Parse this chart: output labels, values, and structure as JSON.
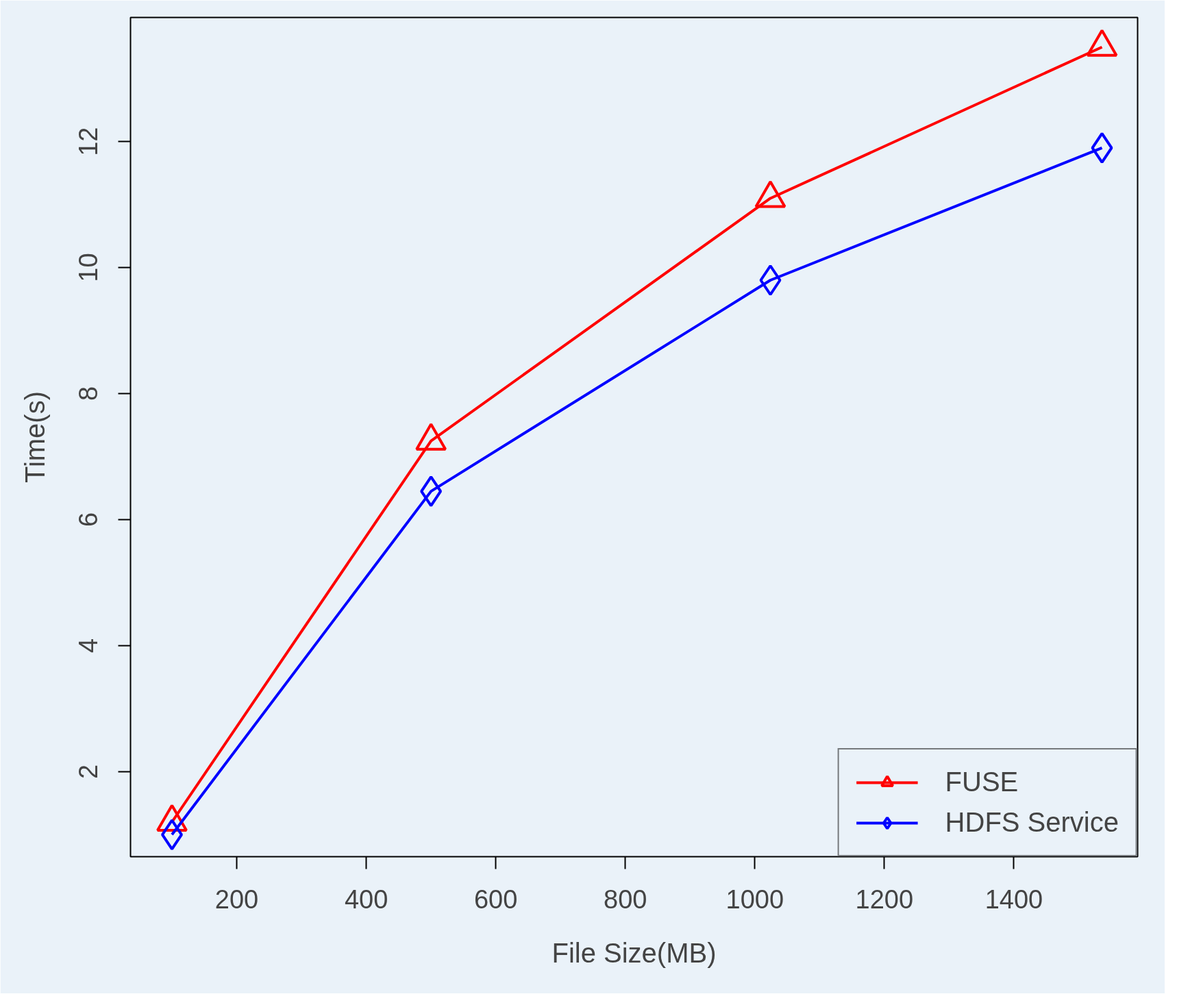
{
  "chart_data": {
    "type": "line",
    "xlabel": "File Size(MB)",
    "ylabel": "Time(s)",
    "x": [
      100,
      500,
      1024,
      1536
    ],
    "series": [
      {
        "name": "FUSE",
        "color": "#ff0000",
        "marker": "triangle",
        "values": [
          1.2,
          7.25,
          11.1,
          13.5
        ]
      },
      {
        "name": "HDFS Service",
        "color": "#0000ff",
        "marker": "diamond",
        "values": [
          1.0,
          6.45,
          9.8,
          11.9
        ]
      }
    ],
    "xlim": [
      36,
      1591
    ],
    "ylim": [
      0.65,
      13.97
    ],
    "xticks": [
      200,
      400,
      600,
      800,
      1000,
      1200,
      1400
    ],
    "yticks": [
      2,
      4,
      6,
      8,
      10,
      12
    ],
    "grid": false,
    "legend": "bottom right",
    "line_style": "solid"
  }
}
